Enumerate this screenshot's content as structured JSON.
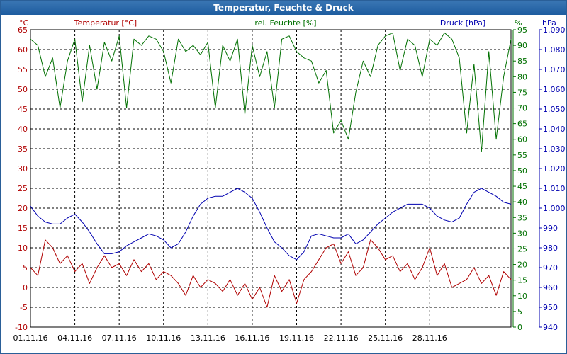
{
  "chart_data": {
    "type": "line",
    "title": "Temperatur, Feuchte & Druck",
    "x": {
      "tick_labels": [
        "01.11.16",
        "04.11.16",
        "07.11.16",
        "10.11.16",
        "13.11.16",
        "16.11.16",
        "19.11.16",
        "22.11.16",
        "25.11.16",
        "28.11.16"
      ],
      "range_days": [
        0,
        32.5
      ]
    },
    "axes": {
      "temperature": {
        "label": "°C",
        "min": -10,
        "max": 65,
        "ticks": [
          -10,
          -5,
          0,
          5,
          10,
          15,
          20,
          25,
          30,
          35,
          40,
          45,
          50,
          55,
          60,
          65
        ]
      },
      "humidity": {
        "label": "%",
        "min": 0,
        "max": 95,
        "ticks": [
          0,
          5,
          10,
          15,
          20,
          25,
          30,
          35,
          40,
          45,
          50,
          55,
          60,
          65,
          70,
          75,
          80,
          85,
          90,
          95
        ]
      },
      "pressure": {
        "label": "hPa",
        "min": 940,
        "max": 1090,
        "ticks": [
          "940",
          "950",
          "960",
          "970",
          "980",
          "990",
          "1.000",
          "1.010",
          "1.020",
          "1.030",
          "1.040",
          "1.050",
          "1.060",
          "1.070",
          "1.080",
          "1.090"
        ]
      }
    },
    "grid": true,
    "series": [
      {
        "name": "Temperatur [°C]",
        "axis": "temperature",
        "color": "#b00000",
        "x": [
          0,
          0.5,
          1,
          1.5,
          2,
          2.5,
          3,
          3.5,
          4,
          4.5,
          5,
          5.5,
          6,
          6.5,
          7,
          7.5,
          8,
          8.5,
          9,
          9.5,
          10,
          10.5,
          11,
          11.5,
          12,
          12.5,
          13,
          13.5,
          14,
          14.5,
          15,
          15.5,
          16,
          16.5,
          17,
          17.5,
          18,
          18.5,
          19,
          19.5,
          20,
          20.5,
          21,
          21.5,
          22,
          22.5,
          23,
          23.5,
          24,
          24.5,
          25,
          25.5,
          26,
          26.5,
          27,
          27.5,
          28,
          28.5,
          29,
          29.5,
          30,
          30.5,
          31,
          31.5,
          32,
          32.5
        ],
        "values": [
          5,
          3,
          12,
          10,
          6,
          8,
          4,
          6,
          1,
          5,
          8,
          5,
          6,
          3,
          7,
          4,
          6,
          2,
          4,
          3,
          1,
          -2,
          3,
          0,
          2,
          1,
          -1,
          2,
          -2,
          1,
          -3,
          0,
          -5,
          3,
          -1,
          2,
          -4,
          2,
          4,
          7,
          10,
          11,
          6,
          9,
          3,
          5,
          12,
          10,
          7,
          8,
          4,
          6,
          2,
          5,
          10,
          3,
          6,
          0,
          1,
          2,
          5,
          1,
          3,
          -2,
          4,
          2
        ]
      },
      {
        "name": "rel. Feuchte [%]",
        "axis": "humidity",
        "color": "#007000",
        "x": [
          0,
          0.5,
          1,
          1.5,
          2,
          2.5,
          3,
          3.5,
          4,
          4.5,
          5,
          5.5,
          6,
          6.5,
          7,
          7.5,
          8,
          8.5,
          9,
          9.5,
          10,
          10.5,
          11,
          11.5,
          12,
          12.5,
          13,
          13.5,
          14,
          14.5,
          15,
          15.5,
          16,
          16.5,
          17,
          17.5,
          18,
          18.5,
          19,
          19.5,
          20,
          20.5,
          21,
          21.5,
          22,
          22.5,
          23,
          23.5,
          24,
          24.5,
          25,
          25.5,
          26,
          26.5,
          27,
          27.5,
          28,
          28.5,
          29,
          29.5,
          30,
          30.5,
          31,
          31.5,
          32,
          32.5
        ],
        "values": [
          92,
          90,
          80,
          86,
          70,
          85,
          92,
          72,
          90,
          76,
          91,
          85,
          93,
          70,
          92,
          90,
          93,
          92,
          88,
          78,
          92,
          88,
          90,
          87,
          91,
          70,
          90,
          85,
          92,
          68,
          90,
          80,
          88,
          70,
          92,
          93,
          88,
          86,
          85,
          78,
          82,
          62,
          66,
          60,
          75,
          85,
          80,
          90,
          93,
          94,
          82,
          92,
          90,
          80,
          92,
          90,
          94,
          92,
          86,
          62,
          84,
          56,
          88,
          60,
          80,
          92
        ]
      },
      {
        "name": "Druck [hPa]",
        "axis": "pressure",
        "color": "#0000b0",
        "x": [
          0,
          0.5,
          1,
          1.5,
          2,
          2.5,
          3,
          3.5,
          4,
          4.5,
          5,
          5.5,
          6,
          6.5,
          7,
          7.5,
          8,
          8.5,
          9,
          9.5,
          10,
          10.5,
          11,
          11.5,
          12,
          12.5,
          13,
          13.5,
          14,
          14.5,
          15,
          15.5,
          16,
          16.5,
          17,
          17.5,
          18,
          18.5,
          19,
          19.5,
          20,
          20.5,
          21,
          21.5,
          22,
          22.5,
          23,
          23.5,
          24,
          24.5,
          25,
          25.5,
          26,
          26.5,
          27,
          27.5,
          28,
          28.5,
          29,
          29.5,
          30,
          30.5,
          31,
          31.5,
          32,
          32.5
        ],
        "values": [
          1001,
          996,
          993,
          992,
          992,
          995,
          997,
          993,
          988,
          982,
          977,
          977,
          978,
          981,
          983,
          985,
          987,
          986,
          984,
          980,
          982,
          988,
          996,
          1002,
          1005,
          1006,
          1006,
          1008,
          1010,
          1008,
          1005,
          998,
          990,
          983,
          980,
          976,
          974,
          978,
          986,
          987,
          986,
          985,
          985,
          987,
          982,
          984,
          988,
          992,
          995,
          998,
          1000,
          1002,
          1002,
          1002,
          1000,
          996,
          994,
          993,
          995,
          1002,
          1008,
          1010,
          1008,
          1006,
          1003,
          1002
        ]
      }
    ]
  }
}
